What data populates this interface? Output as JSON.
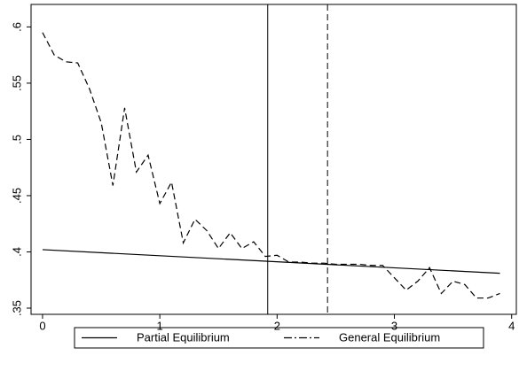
{
  "chart_data": {
    "type": "line",
    "xlim": [
      -0.098,
      4.04
    ],
    "ylim": [
      0.3445,
      0.62
    ],
    "xticks": [
      0,
      1,
      2,
      3,
      4
    ],
    "yticks": [
      {
        "value": 0.35,
        "label": ".35"
      },
      {
        "value": 0.4,
        "label": ".4"
      },
      {
        "value": 0.45,
        "label": ".45"
      },
      {
        "value": 0.5,
        "label": ".5"
      },
      {
        "value": 0.55,
        "label": ".55"
      },
      {
        "value": 0.6,
        "label": ".6"
      }
    ],
    "vlines": [
      {
        "value": 1.92,
        "style": "solid"
      },
      {
        "value": 2.43,
        "style": "dashed"
      }
    ],
    "series": [
      {
        "name": "Partial Equilibrium",
        "color": "#000000",
        "dash": "solid",
        "x": [
          0,
          3.9
        ],
        "values": [
          0.402,
          0.381
        ]
      },
      {
        "name": "General Equilibrium",
        "color": "#000000",
        "dash": "dashed",
        "x": [
          0,
          0.1,
          0.2,
          0.3,
          0.4,
          0.5,
          0.6,
          0.7,
          0.8,
          0.9,
          1.0,
          1.1,
          1.2,
          1.3,
          1.4,
          1.5,
          1.6,
          1.7,
          1.8,
          1.9,
          2.0,
          2.1,
          2.2,
          2.3,
          2.4,
          2.5,
          2.6,
          2.7,
          2.8,
          2.9,
          3.0,
          3.1,
          3.2,
          3.3,
          3.4,
          3.5,
          3.6,
          3.7,
          3.8,
          3.9
        ],
        "values": [
          0.595,
          0.575,
          0.569,
          0.568,
          0.545,
          0.515,
          0.459,
          0.528,
          0.471,
          0.486,
          0.443,
          0.462,
          0.408,
          0.429,
          0.419,
          0.403,
          0.417,
          0.403,
          0.409,
          0.396,
          0.397,
          0.391,
          0.391,
          0.39,
          0.39,
          0.389,
          0.389,
          0.389,
          0.388,
          0.388,
          0.377,
          0.366,
          0.374,
          0.386,
          0.363,
          0.374,
          0.371,
          0.359,
          0.359,
          0.363
        ]
      }
    ]
  }
}
